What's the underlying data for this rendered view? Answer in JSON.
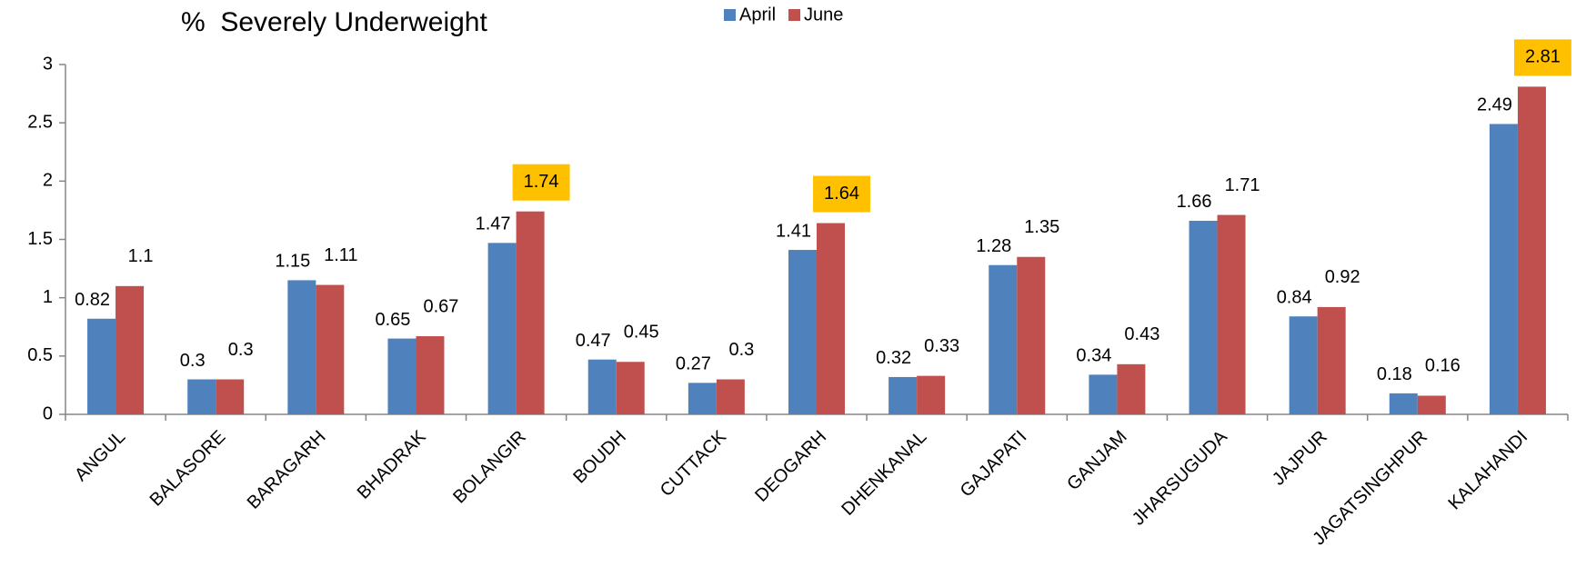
{
  "chart_data": {
    "type": "bar",
    "title": "%  Severely Underweight",
    "categories": [
      "ANGUL",
      "BALASORE",
      "BARAGARH",
      "BHADRAK",
      "BOLANGIR",
      "BOUDH",
      "CUTTACK",
      "DEOGARH",
      "DHENKANAL",
      "GAJAPATI",
      "GANJAM",
      "JHARSUGUDA",
      "JAJPUR",
      "JAGATSINGHPUR",
      "KALAHANDI"
    ],
    "series": [
      {
        "name": "April",
        "color": "#4f81bd",
        "values": [
          0.82,
          0.3,
          1.15,
          0.65,
          1.47,
          0.47,
          0.27,
          1.41,
          0.32,
          1.28,
          0.34,
          1.66,
          0.84,
          0.18,
          2.49
        ]
      },
      {
        "name": "June",
        "color": "#c0504d",
        "values": [
          1.1,
          0.3,
          1.11,
          0.67,
          1.74,
          0.45,
          0.3,
          1.64,
          0.33,
          1.35,
          0.43,
          1.71,
          0.92,
          0.16,
          2.81
        ]
      }
    ],
    "label_highlight": {
      "series": 1,
      "indices": [
        4,
        7,
        14
      ],
      "color": "#ffc000"
    },
    "ylim": [
      0,
      3
    ],
    "yticks": [
      0,
      0.5,
      1,
      1.5,
      2,
      2.5,
      3
    ],
    "grid": false,
    "legend": "top"
  }
}
